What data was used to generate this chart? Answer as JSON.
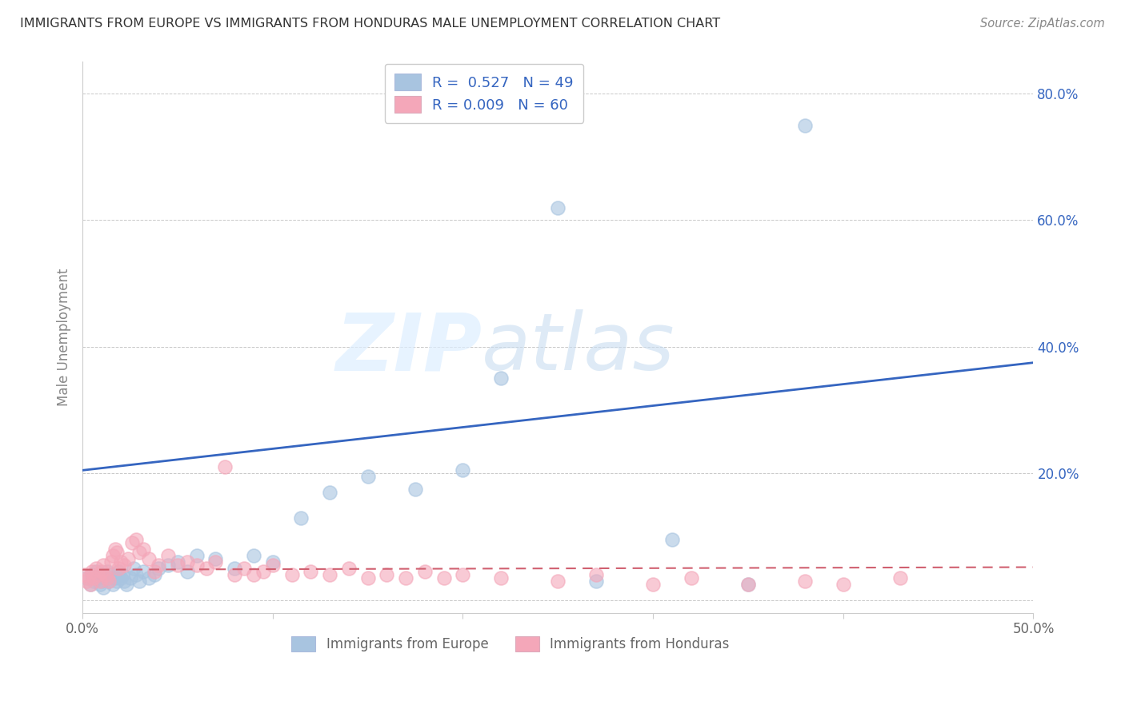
{
  "title": "IMMIGRANTS FROM EUROPE VS IMMIGRANTS FROM HONDURAS MALE UNEMPLOYMENT CORRELATION CHART",
  "source": "Source: ZipAtlas.com",
  "ylabel": "Male Unemployment",
  "xlim": [
    0.0,
    0.5
  ],
  "ylim": [
    -0.02,
    0.85
  ],
  "yticks": [
    0.0,
    0.2,
    0.4,
    0.6,
    0.8
  ],
  "ytick_labels": [
    "",
    "20.0%",
    "40.0%",
    "60.0%",
    "80.0%"
  ],
  "xticks": [
    0.0,
    0.1,
    0.2,
    0.3,
    0.4,
    0.5
  ],
  "xtick_labels": [
    "0.0%",
    "",
    "",
    "",
    "",
    "50.0%"
  ],
  "legend_europe_label": "Immigrants from Europe",
  "legend_honduras_label": "Immigrants from Honduras",
  "R_europe": 0.527,
  "N_europe": 49,
  "R_honduras": 0.009,
  "N_honduras": 60,
  "europe_color": "#a8c4e0",
  "honduras_color": "#f4a7b9",
  "europe_line_color": "#3565c0",
  "honduras_line_color": "#d06070",
  "watermark_zip": "ZIP",
  "watermark_atlas": "atlas",
  "background_color": "#ffffff",
  "grid_color": "#c8c8c8",
  "europe_scatter_x": [
    0.002,
    0.004,
    0.005,
    0.006,
    0.007,
    0.008,
    0.009,
    0.01,
    0.01,
    0.011,
    0.012,
    0.013,
    0.014,
    0.015,
    0.016,
    0.017,
    0.018,
    0.019,
    0.02,
    0.021,
    0.022,
    0.023,
    0.025,
    0.027,
    0.028,
    0.03,
    0.032,
    0.035,
    0.038,
    0.04,
    0.045,
    0.05,
    0.055,
    0.06,
    0.07,
    0.08,
    0.09,
    0.1,
    0.115,
    0.13,
    0.15,
    0.175,
    0.2,
    0.22,
    0.25,
    0.27,
    0.31,
    0.35,
    0.38
  ],
  "europe_scatter_y": [
    0.035,
    0.025,
    0.04,
    0.03,
    0.045,
    0.035,
    0.025,
    0.04,
    0.03,
    0.02,
    0.035,
    0.045,
    0.03,
    0.04,
    0.025,
    0.035,
    0.03,
    0.045,
    0.035,
    0.04,
    0.03,
    0.025,
    0.035,
    0.05,
    0.04,
    0.03,
    0.045,
    0.035,
    0.04,
    0.05,
    0.055,
    0.06,
    0.045,
    0.07,
    0.065,
    0.05,
    0.07,
    0.06,
    0.13,
    0.17,
    0.195,
    0.175,
    0.205,
    0.35,
    0.62,
    0.03,
    0.095,
    0.025,
    0.75
  ],
  "honduras_scatter_x": [
    0.001,
    0.002,
    0.003,
    0.004,
    0.005,
    0.006,
    0.007,
    0.008,
    0.009,
    0.01,
    0.011,
    0.012,
    0.013,
    0.014,
    0.015,
    0.016,
    0.017,
    0.018,
    0.019,
    0.02,
    0.022,
    0.024,
    0.026,
    0.028,
    0.03,
    0.032,
    0.035,
    0.038,
    0.04,
    0.045,
    0.05,
    0.055,
    0.06,
    0.065,
    0.07,
    0.075,
    0.08,
    0.085,
    0.09,
    0.095,
    0.1,
    0.11,
    0.12,
    0.13,
    0.14,
    0.15,
    0.16,
    0.17,
    0.18,
    0.19,
    0.2,
    0.22,
    0.25,
    0.27,
    0.3,
    0.32,
    0.35,
    0.38,
    0.4,
    0.43
  ],
  "honduras_scatter_y": [
    0.04,
    0.03,
    0.035,
    0.025,
    0.045,
    0.035,
    0.05,
    0.04,
    0.03,
    0.045,
    0.055,
    0.04,
    0.035,
    0.03,
    0.06,
    0.07,
    0.08,
    0.075,
    0.05,
    0.06,
    0.055,
    0.065,
    0.09,
    0.095,
    0.075,
    0.08,
    0.065,
    0.045,
    0.055,
    0.07,
    0.055,
    0.06,
    0.055,
    0.05,
    0.06,
    0.21,
    0.04,
    0.05,
    0.04,
    0.045,
    0.055,
    0.04,
    0.045,
    0.04,
    0.05,
    0.035,
    0.04,
    0.035,
    0.045,
    0.035,
    0.04,
    0.035,
    0.03,
    0.04,
    0.025,
    0.035,
    0.025,
    0.03,
    0.025,
    0.035
  ],
  "europe_line_x": [
    0.0,
    0.5
  ],
  "europe_line_y": [
    0.205,
    0.375
  ],
  "honduras_line_x": [
    0.0,
    0.5
  ],
  "honduras_line_y": [
    0.048,
    0.052
  ]
}
